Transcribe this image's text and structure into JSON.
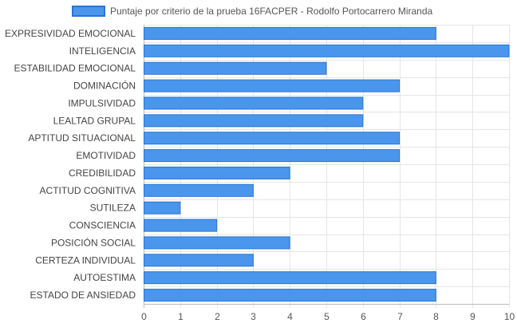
{
  "chart_data": {
    "type": "bar",
    "orientation": "horizontal",
    "title": "",
    "xlabel": "",
    "ylabel": "",
    "xlim": [
      0,
      10
    ],
    "x_ticks": [
      "0",
      "1",
      "2",
      "3",
      "4",
      "5",
      "6",
      "7",
      "8",
      "9",
      "10"
    ],
    "grid": true,
    "legend_position": "top",
    "categories": [
      "EXPRESIVIDAD EMOCIONAL",
      "INTELIGENCIA",
      "ESTABILIDAD EMOCIONAL",
      "DOMINACIÓN",
      "IMPULSIVIDAD",
      "LEALTAD GRUPAL",
      "APTITUD SITUACIONAL",
      "EMOTIVIDAD",
      "CREDIBILIDAD",
      "ACTITUD COGNITIVA",
      "SUTILEZA",
      "CONSCIENCIA",
      "POSICIÓN SOCIAL",
      "CERTEZA INDIVIDUAL",
      "AUTOESTIMA",
      "ESTADO DE ANSIEDAD"
    ],
    "series": [
      {
        "name": "Puntaje por criterio de la prueba 16FACPER - Rodolfo Portocarrero Miranda",
        "values": [
          8,
          10,
          5,
          7,
          6,
          6,
          7,
          7,
          4,
          3,
          1,
          2,
          4,
          3,
          8,
          8
        ]
      }
    ],
    "colors": {
      "bar_fill": "#4a96ec",
      "bar_border": "#2a74d2",
      "grid": "#e5e5e5",
      "axis": "#bbbbbb"
    }
  }
}
